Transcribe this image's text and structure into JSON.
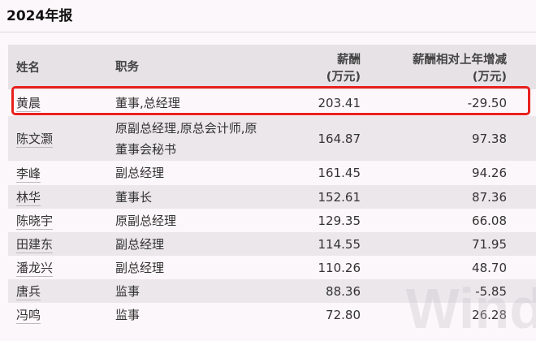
{
  "title": "2024年报",
  "headers": {
    "name": "姓名",
    "role": "职务",
    "salary": "薪酬",
    "salary_unit": "(万元)",
    "change": "薪酬相对上年增减",
    "change_unit": "(万元)"
  },
  "rows": [
    {
      "name": "黄晨",
      "role": "董事,总经理",
      "salary": "203.41",
      "change": "-29.50"
    },
    {
      "name": "陈文灏",
      "role": "原副总经理,原总会计师,原董事会秘书",
      "salary": "164.87",
      "change": "97.38"
    },
    {
      "name": "李峰",
      "role": "副总经理",
      "salary": "161.45",
      "change": "94.26"
    },
    {
      "name": "林华",
      "role": "董事长",
      "salary": "152.61",
      "change": "87.36"
    },
    {
      "name": "陈晓宇",
      "role": "原副总经理",
      "salary": "129.35",
      "change": "66.08"
    },
    {
      "name": "田建东",
      "role": "副总经理",
      "salary": "114.55",
      "change": "71.95"
    },
    {
      "name": "潘龙兴",
      "role": "副总经理",
      "salary": "110.26",
      "change": "48.70"
    },
    {
      "name": "唐兵",
      "role": "监事",
      "salary": "88.36",
      "change": "-5.85"
    },
    {
      "name": "冯鸣",
      "role": "监事",
      "salary": "72.80",
      "change": "26.28"
    }
  ],
  "highlight_color": "#e8201e",
  "watermark": "Wind"
}
